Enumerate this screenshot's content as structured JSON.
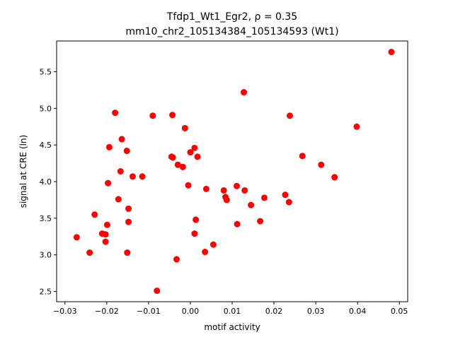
{
  "chart_data": {
    "type": "scatter",
    "title_line1": "Tfdp1_Wt1_Egr2, ρ = 0.35",
    "title_line2": "mm10_chr2_105134384_105134593 (Wt1)",
    "xlabel": "motif activity",
    "ylabel": "signal at CRE (ln)",
    "xlim": [
      -0.032,
      0.052
    ],
    "ylim": [
      2.36,
      5.92
    ],
    "xticks": [
      -0.03,
      -0.02,
      -0.01,
      0.0,
      0.01,
      0.02,
      0.03,
      0.04,
      0.05
    ],
    "xtick_labels": [
      "−0.03",
      "−0.02",
      "−0.01",
      "0.00",
      "0.01",
      "0.02",
      "0.03",
      "0.04",
      "0.05"
    ],
    "yticks": [
      2.5,
      3.0,
      3.5,
      4.0,
      4.5,
      5.0,
      5.5
    ],
    "ytick_labels": [
      "2.5",
      "3.0",
      "3.5",
      "4.0",
      "4.5",
      "5.0",
      "5.5"
    ],
    "marker_color": "#ff0000",
    "grid": false,
    "points": [
      {
        "x": -0.0272,
        "y": 3.24
      },
      {
        "x": -0.0241,
        "y": 3.03
      },
      {
        "x": -0.0229,
        "y": 3.55
      },
      {
        "x": -0.0211,
        "y": 3.29
      },
      {
        "x": -0.0203,
        "y": 3.28
      },
      {
        "x": -0.0203,
        "y": 3.18
      },
      {
        "x": -0.0199,
        "y": 3.41
      },
      {
        "x": -0.0197,
        "y": 3.98
      },
      {
        "x": -0.0194,
        "y": 4.47
      },
      {
        "x": -0.018,
        "y": 4.94
      },
      {
        "x": -0.0172,
        "y": 3.76
      },
      {
        "x": -0.0167,
        "y": 4.14
      },
      {
        "x": -0.0164,
        "y": 4.58
      },
      {
        "x": -0.0152,
        "y": 4.42
      },
      {
        "x": -0.0151,
        "y": 3.03
      },
      {
        "x": -0.0148,
        "y": 3.45
      },
      {
        "x": -0.0148,
        "y": 3.63
      },
      {
        "x": -0.0138,
        "y": 4.07
      },
      {
        "x": -0.0115,
        "y": 4.07
      },
      {
        "x": -0.009,
        "y": 4.9
      },
      {
        "x": -0.008,
        "y": 2.51
      },
      {
        "x": -0.0045,
        "y": 4.34
      },
      {
        "x": -0.0042,
        "y": 4.33
      },
      {
        "x": -0.0043,
        "y": 4.91
      },
      {
        "x": -0.0033,
        "y": 2.94
      },
      {
        "x": -0.003,
        "y": 4.23
      },
      {
        "x": -0.0018,
        "y": 4.2
      },
      {
        "x": -0.0013,
        "y": 4.73
      },
      {
        "x": -0.0005,
        "y": 3.95
      },
      {
        "x": 0.0,
        "y": 4.4
      },
      {
        "x": 0.001,
        "y": 4.46
      },
      {
        "x": 0.001,
        "y": 3.29
      },
      {
        "x": 0.0013,
        "y": 3.48
      },
      {
        "x": 0.0017,
        "y": 4.34
      },
      {
        "x": 0.0035,
        "y": 3.04
      },
      {
        "x": 0.0038,
        "y": 3.9
      },
      {
        "x": 0.0055,
        "y": 3.14
      },
      {
        "x": 0.008,
        "y": 3.88
      },
      {
        "x": 0.0084,
        "y": 3.79
      },
      {
        "x": 0.0087,
        "y": 3.75
      },
      {
        "x": 0.0111,
        "y": 3.94
      },
      {
        "x": 0.0112,
        "y": 3.42
      },
      {
        "x": 0.0128,
        "y": 5.22
      },
      {
        "x": 0.013,
        "y": 3.88
      },
      {
        "x": 0.0145,
        "y": 3.68
      },
      {
        "x": 0.0167,
        "y": 3.46
      },
      {
        "x": 0.0177,
        "y": 3.78
      },
      {
        "x": 0.0227,
        "y": 3.82
      },
      {
        "x": 0.0236,
        "y": 3.72
      },
      {
        "x": 0.0238,
        "y": 4.9
      },
      {
        "x": 0.0268,
        "y": 4.35
      },
      {
        "x": 0.0313,
        "y": 4.23
      },
      {
        "x": 0.0345,
        "y": 4.06
      },
      {
        "x": 0.0398,
        "y": 4.75
      },
      {
        "x": 0.0481,
        "y": 5.77
      }
    ]
  }
}
